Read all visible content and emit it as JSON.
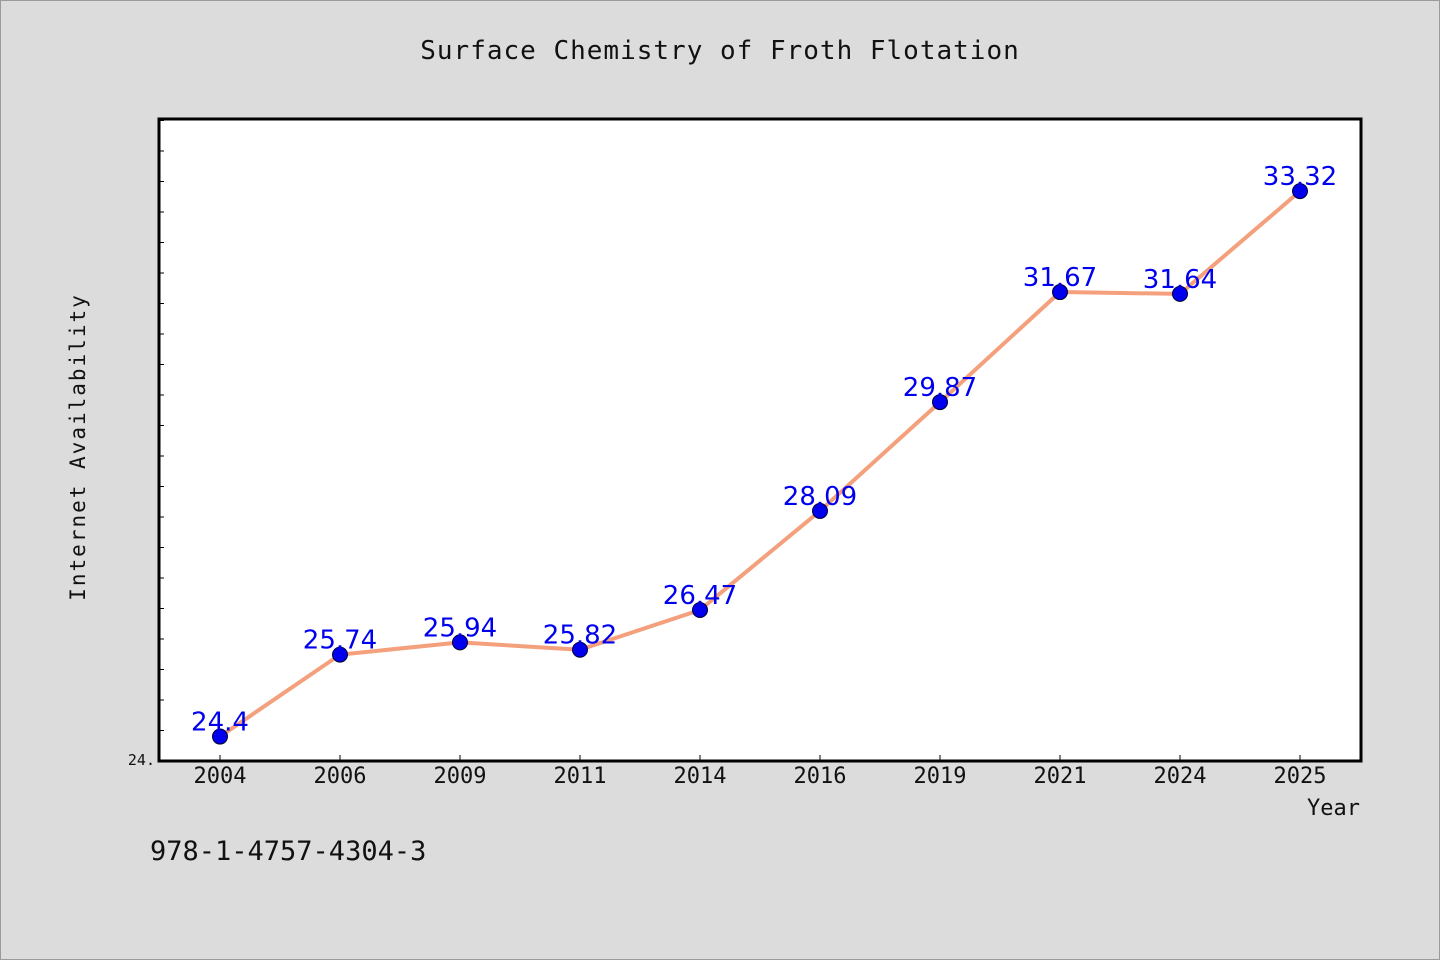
{
  "chart_data": {
    "type": "line",
    "title": "Surface Chemistry of Froth Flotation",
    "xlabel": "Year",
    "ylabel": "Internet Availability",
    "categories": [
      "2004",
      "2006",
      "2009",
      "2011",
      "2014",
      "2016",
      "2019",
      "2021",
      "2024",
      "2025"
    ],
    "series": [
      {
        "values": [
          24.4,
          25.74,
          25.94,
          25.82,
          26.47,
          28.09,
          29.87,
          31.67,
          31.64,
          33.32
        ],
        "labels": [
          "24.4",
          "25.74",
          "25.94",
          "25.82",
          "26.47",
          "28.09",
          "29.87",
          "31.67",
          "31.64",
          "33.32"
        ]
      }
    ],
    "ylim": [
      24.0,
      34.5
    ],
    "y_tick_labels": [
      "24."
    ],
    "grid": false,
    "line_color": "#f4a07c",
    "marker_color": "#0000ee",
    "label_color": "#0000ee"
  },
  "footer": {
    "isbn": "978-1-4757-4304-3"
  }
}
